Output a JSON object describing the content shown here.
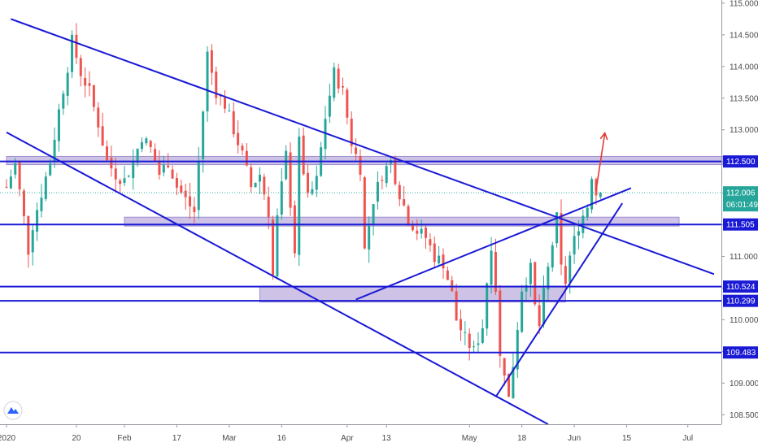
{
  "chart_data": {
    "type": "candlestick",
    "title": "",
    "xlabel": "",
    "ylabel": "",
    "ylim": [
      108.35,
      115.05
    ],
    "yticks": [
      "108.500",
      "109.000",
      "109.500",
      "110.000",
      "110.500",
      "111.000",
      "111.500",
      "112.000",
      "112.500",
      "113.000",
      "113.500",
      "114.000",
      "114.500",
      "115.000"
    ],
    "xticks": [
      "2020",
      "20",
      "Feb",
      "17",
      "Mar",
      "16",
      "Apr",
      "13",
      "May",
      "18",
      "Jun",
      "15",
      "Jul"
    ],
    "grid": false,
    "current_price": "112.006",
    "countdown": "06:01:49",
    "level_labels": [
      {
        "value": 112.5,
        "text": "112.500"
      },
      {
        "value": 111.505,
        "text": "111.505"
      },
      {
        "value": 110.524,
        "text": "110.524"
      },
      {
        "value": 110.299,
        "text": "110.299"
      },
      {
        "value": 109.483,
        "text": "109.483"
      }
    ],
    "horizontal_levels": [
      112.5,
      111.505,
      110.524,
      110.299,
      109.483
    ],
    "zones": [
      {
        "from_day": 0,
        "to_day": 166,
        "low": 112.45,
        "high": 112.58
      },
      {
        "from_day": 27,
        "to_day": 154,
        "low": 111.48,
        "high": 111.62
      },
      {
        "from_day": 58,
        "to_day": 128,
        "low": 110.28,
        "high": 110.53
      }
    ],
    "trendlines": [
      {
        "from": [
          1,
          114.75
        ],
        "to": [
          162,
          110.72
        ]
      },
      {
        "from": [
          0,
          112.96
        ],
        "to": [
          124,
          108.35
        ]
      },
      {
        "from": [
          80,
          110.32
        ],
        "to": [
          143,
          112.08
        ]
      },
      {
        "from": [
          112,
          108.78
        ],
        "to": [
          141,
          111.84
        ]
      }
    ],
    "projection_arrow": {
      "from": [
        135,
        112.05
      ],
      "to": [
        137,
        112.95
      ]
    },
    "price_path": [
      [
        0,
        112.1
      ],
      [
        2,
        112.45
      ],
      [
        4,
        111.6
      ],
      [
        5,
        111.1
      ],
      [
        6,
        111.5
      ],
      [
        8,
        112.0
      ],
      [
        10,
        112.5
      ],
      [
        12,
        113.3
      ],
      [
        14,
        114.0
      ],
      [
        15,
        114.4
      ],
      [
        17,
        113.9
      ],
      [
        19,
        113.6
      ],
      [
        21,
        113.1
      ],
      [
        23,
        112.5
      ],
      [
        25,
        112.3
      ],
      [
        27,
        112.2
      ],
      [
        29,
        112.5
      ],
      [
        31,
        112.9
      ],
      [
        33,
        112.7
      ],
      [
        35,
        112.3
      ],
      [
        37,
        112.5
      ],
      [
        39,
        112.1
      ],
      [
        41,
        111.9
      ],
      [
        43,
        111.7
      ],
      [
        45,
        113.3
      ],
      [
        46,
        114.2
      ],
      [
        48,
        113.6
      ],
      [
        50,
        113.4
      ],
      [
        52,
        113.0
      ],
      [
        54,
        112.6
      ],
      [
        56,
        112.1
      ],
      [
        58,
        112.3
      ],
      [
        60,
        111.7
      ],
      [
        61,
        110.7
      ],
      [
        62,
        111.6
      ],
      [
        64,
        112.6
      ],
      [
        66,
        111.1
      ],
      [
        67,
        112.8
      ],
      [
        69,
        111.9
      ],
      [
        71,
        112.2
      ],
      [
        73,
        113.2
      ],
      [
        75,
        113.9
      ],
      [
        77,
        113.6
      ],
      [
        79,
        112.8
      ],
      [
        81,
        112.4
      ],
      [
        82,
        111.1
      ],
      [
        84,
        111.9
      ],
      [
        86,
        112.3
      ],
      [
        88,
        112.5
      ],
      [
        90,
        112.0
      ],
      [
        92,
        111.6
      ],
      [
        94,
        111.4
      ],
      [
        96,
        111.3
      ],
      [
        98,
        111.0
      ],
      [
        100,
        110.9
      ],
      [
        102,
        110.4
      ],
      [
        103,
        110.0
      ],
      [
        105,
        109.7
      ],
      [
        107,
        109.5
      ],
      [
        109,
        109.9
      ],
      [
        110,
        110.6
      ],
      [
        111,
        111.2
      ],
      [
        112,
        110.5
      ],
      [
        113,
        109.4
      ],
      [
        114,
        109.2
      ],
      [
        115,
        108.75
      ],
      [
        116,
        109.3
      ],
      [
        117,
        109.9
      ],
      [
        118,
        110.5
      ],
      [
        120,
        110.8
      ],
      [
        121,
        110.2
      ],
      [
        122,
        109.9
      ],
      [
        123,
        110.4
      ],
      [
        125,
        111.2
      ],
      [
        126,
        111.6
      ],
      [
        127,
        110.8
      ],
      [
        128,
        110.6
      ],
      [
        129,
        111.0
      ],
      [
        131,
        111.5
      ],
      [
        133,
        111.8
      ],
      [
        134,
        112.3
      ],
      [
        135,
        112.0
      ],
      [
        136,
        112.006
      ]
    ]
  }
}
